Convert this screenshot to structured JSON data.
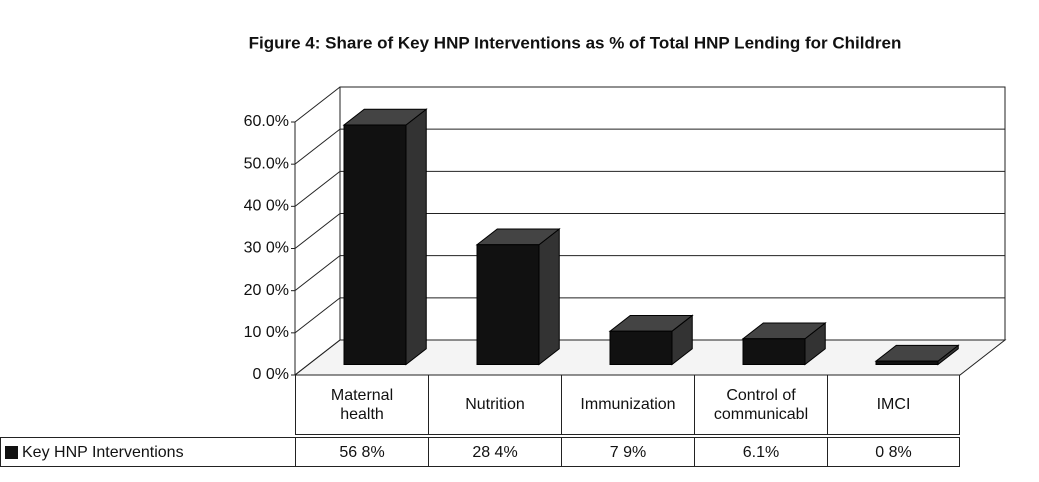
{
  "chart_data": {
    "type": "bar",
    "title": "Figure 4: Share of Key HNP Interventions as % of Total HNP Lending for Children",
    "categories": [
      "Maternal health",
      "Nutrition",
      "Immunization",
      "Control of communicabl",
      "IMCI"
    ],
    "series": [
      {
        "name": "Key HNP Interventions",
        "color": "#111111",
        "values": [
          56.8,
          28.4,
          7.9,
          6.1,
          0.8
        ],
        "value_labels": [
          "56 8%",
          "28 4%",
          "7 9%",
          "6.1%",
          "0 8%"
        ]
      }
    ],
    "ylim": [
      0,
      60
    ],
    "yticks": [
      {
        "value": 0,
        "label": "0 0%"
      },
      {
        "value": 10,
        "label": "10 0%"
      },
      {
        "value": 20,
        "label": "20 0%"
      },
      {
        "value": 30,
        "label": "30 0%"
      },
      {
        "value": 40,
        "label": "40 0%"
      },
      {
        "value": 50,
        "label": "50.0%"
      },
      {
        "value": 60,
        "label": "60.0%"
      }
    ],
    "grid": true
  }
}
